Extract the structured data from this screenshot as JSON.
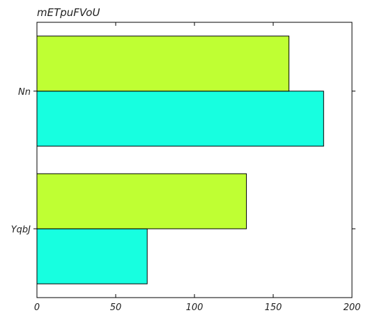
{
  "chart_data": {
    "type": "bar",
    "orientation": "horizontal",
    "title": "mETpuFVoU",
    "xlabel": "",
    "ylabel": "",
    "categories": [
      "YqbJ",
      "Nn"
    ],
    "series": [
      {
        "color": "#17ffe0",
        "values": [
          70,
          182
        ]
      },
      {
        "color": "#bfff33",
        "values": [
          133,
          160
        ]
      }
    ],
    "xlim": [
      0,
      200
    ],
    "xticks": [
      0,
      50,
      100,
      150,
      200
    ],
    "grid": false,
    "legend": "none"
  }
}
